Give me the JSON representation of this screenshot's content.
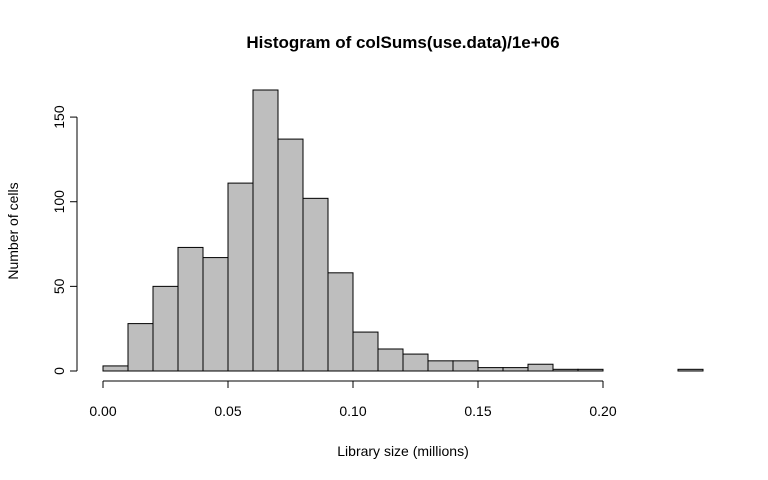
{
  "chart_data": {
    "type": "histogram",
    "title": "Histogram of colSums(use.data)/1e+06",
    "xlabel": "Library size (millions)",
    "ylabel": "Number of cells",
    "bin_width": 0.01,
    "bins": [
      {
        "start": 0.0,
        "end": 0.01,
        "count": 3
      },
      {
        "start": 0.01,
        "end": 0.02,
        "count": 28
      },
      {
        "start": 0.02,
        "end": 0.03,
        "count": 50
      },
      {
        "start": 0.03,
        "end": 0.04,
        "count": 73
      },
      {
        "start": 0.04,
        "end": 0.05,
        "count": 67
      },
      {
        "start": 0.05,
        "end": 0.06,
        "count": 111
      },
      {
        "start": 0.06,
        "end": 0.07,
        "count": 166
      },
      {
        "start": 0.07,
        "end": 0.08,
        "count": 137
      },
      {
        "start": 0.08,
        "end": 0.09,
        "count": 102
      },
      {
        "start": 0.09,
        "end": 0.1,
        "count": 58
      },
      {
        "start": 0.1,
        "end": 0.11,
        "count": 23
      },
      {
        "start": 0.11,
        "end": 0.12,
        "count": 13
      },
      {
        "start": 0.12,
        "end": 0.13,
        "count": 10
      },
      {
        "start": 0.13,
        "end": 0.14,
        "count": 6
      },
      {
        "start": 0.14,
        "end": 0.15,
        "count": 6
      },
      {
        "start": 0.15,
        "end": 0.16,
        "count": 2
      },
      {
        "start": 0.16,
        "end": 0.17,
        "count": 2
      },
      {
        "start": 0.17,
        "end": 0.18,
        "count": 4
      },
      {
        "start": 0.18,
        "end": 0.19,
        "count": 1
      },
      {
        "start": 0.19,
        "end": 0.2,
        "count": 1
      },
      {
        "start": 0.2,
        "end": 0.21,
        "count": 0
      },
      {
        "start": 0.21,
        "end": 0.22,
        "count": 0
      },
      {
        "start": 0.22,
        "end": 0.23,
        "count": 0
      },
      {
        "start": 0.23,
        "end": 0.24,
        "count": 1
      }
    ],
    "x_ticks": [
      "0.00",
      "0.05",
      "0.10",
      "0.15",
      "0.20"
    ],
    "x_tick_values": [
      0.0,
      0.05,
      0.1,
      0.15,
      0.2
    ],
    "y_ticks": [
      "0",
      "50",
      "100",
      "150"
    ],
    "y_tick_values": [
      0,
      50,
      100,
      150
    ],
    "xlim": [
      0.0,
      0.24
    ],
    "ylim": [
      0,
      166
    ],
    "grid": false,
    "colors": {
      "bar_fill": "#bebebe",
      "bar_stroke": "#000000"
    }
  }
}
